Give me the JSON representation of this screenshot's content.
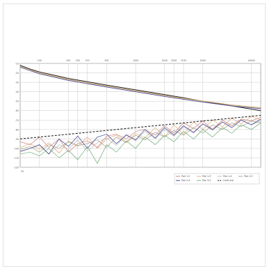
{
  "chart_data": {
    "type": "line",
    "title": "",
    "xlabel": "",
    "ylabel": "",
    "xscale": "log",
    "xlim": [
      63,
      20000
    ],
    "ylim": [
      -120,
      -10
    ],
    "grid": true,
    "legend_position": "bottom-right",
    "x_tick_labels": [
      "100",
      "200",
      "250",
      "315",
      "500",
      "1000",
      "2000",
      "2500",
      "3150",
      "5000",
      "16000"
    ],
    "y_tick_labels": [
      "-10",
      "-20",
      "-30",
      "-40",
      "-50",
      "-60",
      "-70",
      "-80",
      "-90",
      "-100",
      "-110",
      "-120"
    ],
    "x_tick_values": [
      100,
      200,
      250,
      315,
      500,
      1000,
      2000,
      2500,
      3150,
      5000,
      16000
    ],
    "y_tick_values": [
      -10,
      -20,
      -30,
      -40,
      -50,
      -60,
      -70,
      -80,
      -90,
      -100,
      -110,
      -120
    ],
    "x_corner_label": "20",
    "series": [
      {
        "name": "Pair 1-2",
        "color": "#c97a7a",
        "style": "solid",
        "x": [
          63,
          80,
          100,
          125,
          160,
          200,
          250,
          315,
          400,
          500,
          630,
          800,
          1000,
          1250,
          1600,
          2000,
          2500,
          3150,
          4000,
          5000,
          6300,
          8000,
          10000,
          12500,
          16000,
          20000
        ],
        "y": [
          -93,
          -96,
          -88,
          -99,
          -90,
          -104,
          -95,
          -92,
          -99,
          -87,
          -85,
          -90,
          -82,
          -80,
          -86,
          -76,
          -84,
          -73,
          -79,
          -71,
          -80,
          -70,
          -76,
          -69,
          -71,
          -67
        ]
      },
      {
        "name": "Pair 1-3",
        "color": "#e0a97a",
        "style": "solid",
        "x": [
          63,
          80,
          100,
          125,
          160,
          200,
          250,
          315,
          400,
          500,
          630,
          800,
          1000,
          1250,
          1600,
          2000,
          2500,
          3150,
          4000,
          5000,
          6300,
          8000,
          10000,
          12500,
          16000,
          20000
        ],
        "y": [
          -99,
          -95,
          -101,
          -94,
          -105,
          -92,
          -98,
          -88,
          -100,
          -90,
          -86,
          -93,
          -84,
          -89,
          -78,
          -88,
          -75,
          -85,
          -72,
          -80,
          -70,
          -77,
          -68,
          -74,
          -66,
          -70
        ]
      },
      {
        "name": "Pair 1-4",
        "color": "#b8b8b8",
        "style": "solid",
        "x": [
          63,
          80,
          100,
          125,
          160,
          200,
          250,
          315,
          400,
          500,
          630,
          800,
          1000,
          1250,
          1600,
          2000,
          2500,
          3150,
          4000,
          5000,
          6300,
          8000,
          10000,
          12500,
          16000,
          20000
        ],
        "y": [
          -104,
          -100,
          -97,
          -106,
          -96,
          -101,
          -91,
          -103,
          -94,
          -89,
          -97,
          -85,
          -92,
          -82,
          -90,
          -80,
          -87,
          -77,
          -84,
          -74,
          -81,
          -72,
          -78,
          -70,
          -75,
          -71
        ]
      },
      {
        "name": "Pair 2-3",
        "color": "#a0a080",
        "style": "solid",
        "x": [
          63,
          80,
          100,
          125,
          160,
          200,
          250,
          315,
          400,
          500,
          630,
          800,
          1000,
          1250,
          1600,
          2000,
          2500,
          3150,
          4000,
          5000,
          6300,
          8000,
          10000,
          12500,
          16000,
          20000
        ],
        "y": [
          -101,
          -98,
          -104,
          -96,
          -100,
          -93,
          -97,
          -95,
          -91,
          -99,
          -88,
          -94,
          -86,
          -91,
          -83,
          -88,
          -81,
          -86,
          -78,
          -84,
          -75,
          -80,
          -73,
          -77,
          -71,
          -73
        ]
      },
      {
        "name": "Pair 2-4",
        "color": "#3a3a8a",
        "style": "solid",
        "x": [
          63,
          80,
          100,
          125,
          160,
          200,
          250,
          315,
          400,
          500,
          630,
          800,
          1000,
          1250,
          1600,
          2000,
          2500,
          3150,
          4000,
          5000,
          6300,
          8000,
          10000,
          12500,
          16000,
          20000
        ],
        "y": [
          -103,
          -100,
          -96,
          -106,
          -90,
          -98,
          -87,
          -100,
          -88,
          -85,
          -95,
          -86,
          -91,
          -80,
          -89,
          -78,
          -86,
          -76,
          -83,
          -74,
          -80,
          -72,
          -78,
          -70,
          -75,
          -69
        ]
      },
      {
        "name": "Pair 3-4",
        "color": "#6aaa7a",
        "style": "solid",
        "x": [
          63,
          80,
          100,
          125,
          160,
          200,
          250,
          315,
          400,
          500,
          630,
          800,
          1000,
          1250,
          1600,
          2000,
          2500,
          3150,
          4000,
          5000,
          6300,
          8000,
          10000,
          12500,
          16000,
          20000
        ],
        "y": [
          -106,
          -104,
          -108,
          -100,
          -110,
          -102,
          -112,
          -98,
          -116,
          -96,
          -104,
          -92,
          -100,
          -88,
          -96,
          -86,
          -93,
          -82,
          -90,
          -80,
          -88,
          -78,
          -84,
          -75,
          -80,
          -73
        ]
      },
      {
        "name": "Limit line",
        "color": "#222222",
        "style": "dashed",
        "x": [
          63,
          100,
          200,
          500,
          1000,
          2000,
          5000,
          10000,
          20000
        ],
        "y": [
          -90,
          -88,
          -85,
          -81,
          -78,
          -75,
          -71,
          -68,
          -65
        ]
      },
      {
        "name": "",
        "color": "#222222",
        "style": "solid",
        "x": [
          63,
          80,
          100,
          150,
          200,
          300,
          500,
          1000,
          2000,
          3000,
          5000,
          10000,
          20000
        ],
        "y": [
          -12,
          -16,
          -19,
          -23,
          -26,
          -29,
          -33,
          -38,
          -43,
          -46,
          -50,
          -55,
          -60
        ]
      },
      {
        "name": "",
        "color": "#5a5a9a",
        "style": "solid",
        "x": [
          63,
          100,
          200,
          500,
          1000,
          2000,
          5000,
          10000,
          20000
        ],
        "y": [
          -14,
          -21,
          -28,
          -35,
          -40,
          -45,
          -51,
          -55,
          -58
        ]
      },
      {
        "name": "",
        "color": "#c8a060",
        "style": "solid",
        "x": [
          63,
          100,
          200,
          500,
          1000,
          2000,
          5000,
          10000,
          20000
        ],
        "y": [
          -13,
          -20,
          -27,
          -34,
          -39,
          -44,
          -50,
          -54,
          -57
        ]
      }
    ]
  }
}
